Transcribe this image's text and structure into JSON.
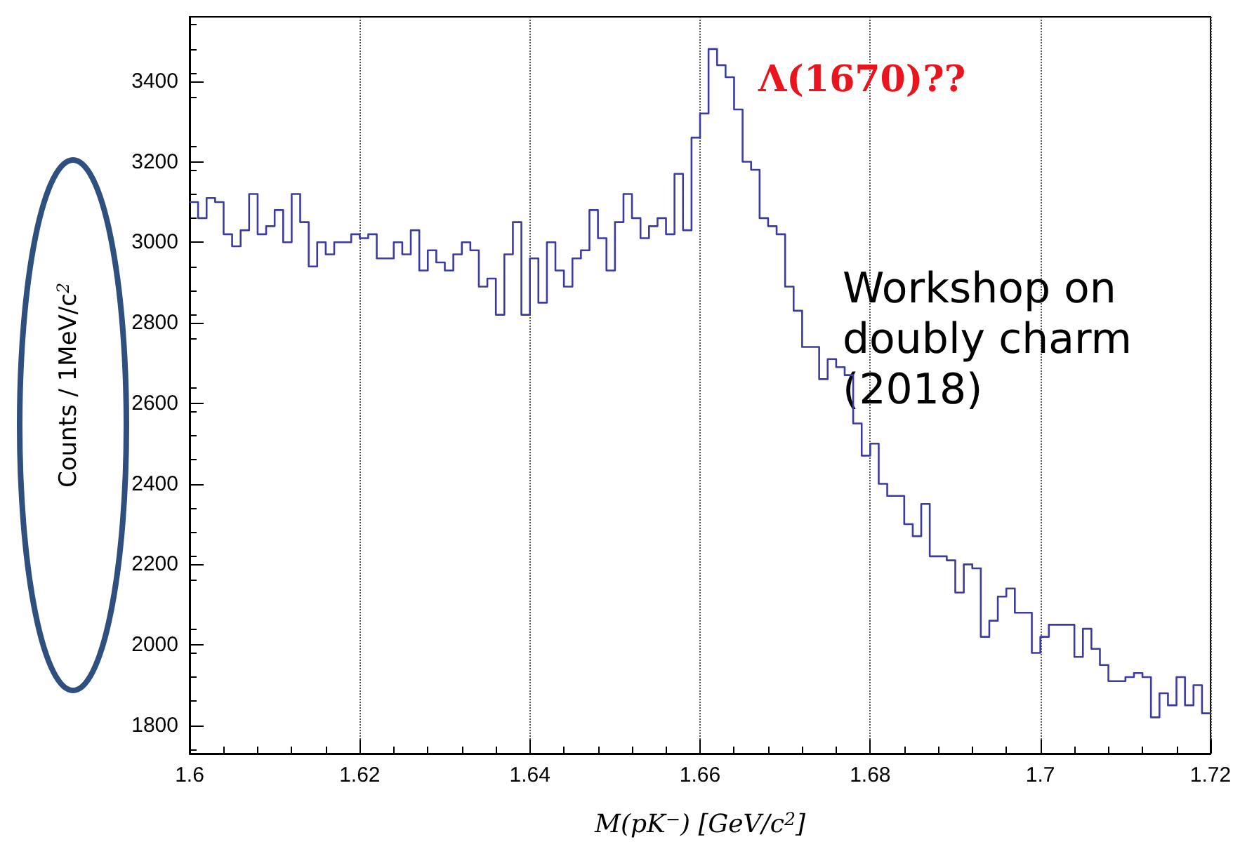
{
  "chart_data": {
    "type": "histogram",
    "xlabel": "M(pK$^{−}$) [GeV/c$^{2}$]",
    "ylabel": "Counts / 1MeV/c$^{2}$",
    "bins": [
      1.6,
      1.601,
      1.602,
      1.603,
      1.604,
      1.605,
      1.606,
      1.607,
      1.608,
      1.609,
      1.61,
      1.611,
      1.612,
      1.613,
      1.614,
      1.615,
      1.616,
      1.617,
      1.618,
      1.619,
      1.62,
      1.621,
      1.622,
      1.623,
      1.624,
      1.625,
      1.626,
      1.627,
      1.628,
      1.629,
      1.63,
      1.631,
      1.632,
      1.633,
      1.634,
      1.635,
      1.636,
      1.637,
      1.638,
      1.639,
      1.64,
      1.641,
      1.642,
      1.643,
      1.644,
      1.645,
      1.646,
      1.647,
      1.648,
      1.649,
      1.65,
      1.651,
      1.652,
      1.653,
      1.654,
      1.655,
      1.656,
      1.657,
      1.658,
      1.659,
      1.66,
      1.661,
      1.662,
      1.663,
      1.664,
      1.665,
      1.666,
      1.667,
      1.668,
      1.669,
      1.67,
      1.671,
      1.672,
      1.673,
      1.674,
      1.675,
      1.676,
      1.677,
      1.678,
      1.679,
      1.68,
      1.681,
      1.682,
      1.683,
      1.684,
      1.685,
      1.686,
      1.687,
      1.688,
      1.689,
      1.69,
      1.691,
      1.692,
      1.693,
      1.694,
      1.695,
      1.696,
      1.697,
      1.698,
      1.699,
      1.7,
      1.701,
      1.702,
      1.703,
      1.704,
      1.705,
      1.706,
      1.707,
      1.708,
      1.709,
      1.71,
      1.711,
      1.712,
      1.713,
      1.714,
      1.715,
      1.716,
      1.717,
      1.718,
      1.719,
      1.72
    ],
    "values": [
      3100,
      3060,
      3110,
      3100,
      3020,
      2990,
      3030,
      3120,
      3020,
      3040,
      3080,
      3000,
      3120,
      3050,
      2940,
      3000,
      2970,
      3000,
      3000,
      3020,
      3010,
      3020,
      2960,
      2960,
      3000,
      2970,
      3030,
      2930,
      2980,
      2950,
      2930,
      2970,
      3000,
      2980,
      2890,
      2910,
      2820,
      2970,
      3050,
      2820,
      2960,
      2850,
      3000,
      2930,
      2890,
      2960,
      2980,
      3080,
      3010,
      2930,
      3050,
      3120,
      3060,
      3010,
      3040,
      3060,
      3020,
      3170,
      3030,
      3260,
      3320,
      3480,
      3440,
      3410,
      3330,
      3200,
      3180,
      3060,
      3040,
      3020,
      2890,
      2830,
      2740,
      2740,
      2660,
      2710,
      2690,
      2670,
      2550,
      2470,
      2500,
      2400,
      2370,
      2370,
      2300,
      2270,
      2350,
      2220,
      2220,
      2210,
      2130,
      2200,
      2190,
      2020,
      2060,
      2120,
      2140,
      2080,
      2080,
      1980,
      2020,
      2050,
      2050,
      2050,
      1970,
      2040,
      1990,
      1950,
      1910,
      1910,
      1920,
      1930,
      1920,
      1820,
      1880,
      1850,
      1920,
      1850,
      1900,
      1830
    ],
    "color": "#3c3ca0",
    "xlim": [
      1.6,
      1.72
    ],
    "xticks": [
      1.6,
      1.62,
      1.64,
      1.66,
      1.68,
      1.7,
      1.72
    ],
    "ylim": [
      1730,
      3560
    ],
    "yticks": [
      1800,
      2000,
      2200,
      2400,
      2600,
      2800,
      3000,
      3200,
      3400
    ],
    "grid": "x",
    "annotations": [
      "Λ(1670)??",
      "Workshop on doubly charm (2018)"
    ]
  }
}
